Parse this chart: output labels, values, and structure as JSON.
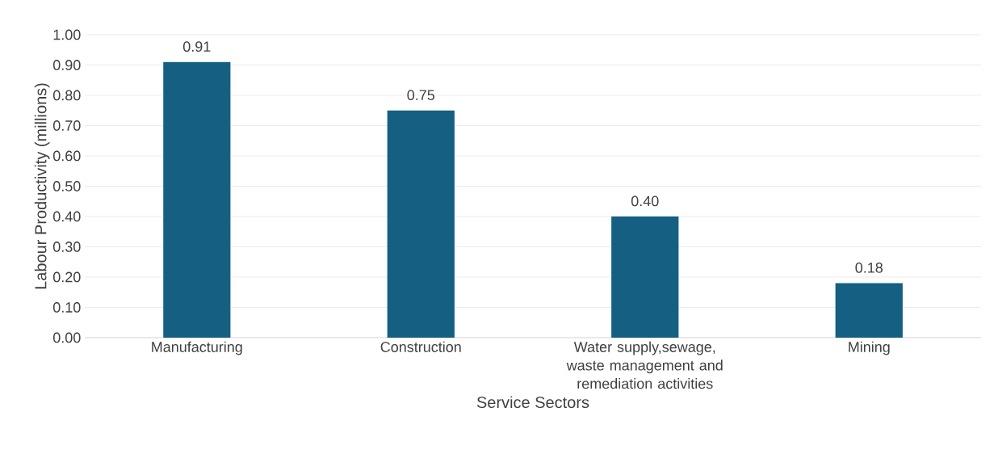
{
  "chart_data": {
    "type": "bar",
    "xlabel": "Service Sectors",
    "ylabel": "Labour Productivity (millions)",
    "categories": [
      "Manufacturing",
      "Construction",
      "Water supply,sewage, waste management and remediation activities",
      "Mining"
    ],
    "values": [
      0.91,
      0.75,
      0.4,
      0.18
    ],
    "value_labels": [
      "0.91",
      "0.75",
      "0.40",
      "0.18"
    ],
    "color": "#155f82",
    "ylim": [
      0,
      1
    ],
    "yticks": [
      {
        "value": 0,
        "label": "0.00"
      },
      {
        "value": 0.1,
        "label": "0.10"
      },
      {
        "value": 0.2,
        "label": "0.20"
      },
      {
        "value": 0.3,
        "label": "0.30"
      },
      {
        "value": 0.4,
        "label": "0.40"
      },
      {
        "value": 0.5,
        "label": "0.50"
      },
      {
        "value": 0.6,
        "label": "0.60"
      },
      {
        "value": 0.7,
        "label": "0.70"
      },
      {
        "value": 0.8,
        "label": "0.80"
      },
      {
        "value": 0.9,
        "label": "0.90"
      },
      {
        "value": 1,
        "label": "1.00"
      }
    ],
    "grid": "y"
  }
}
